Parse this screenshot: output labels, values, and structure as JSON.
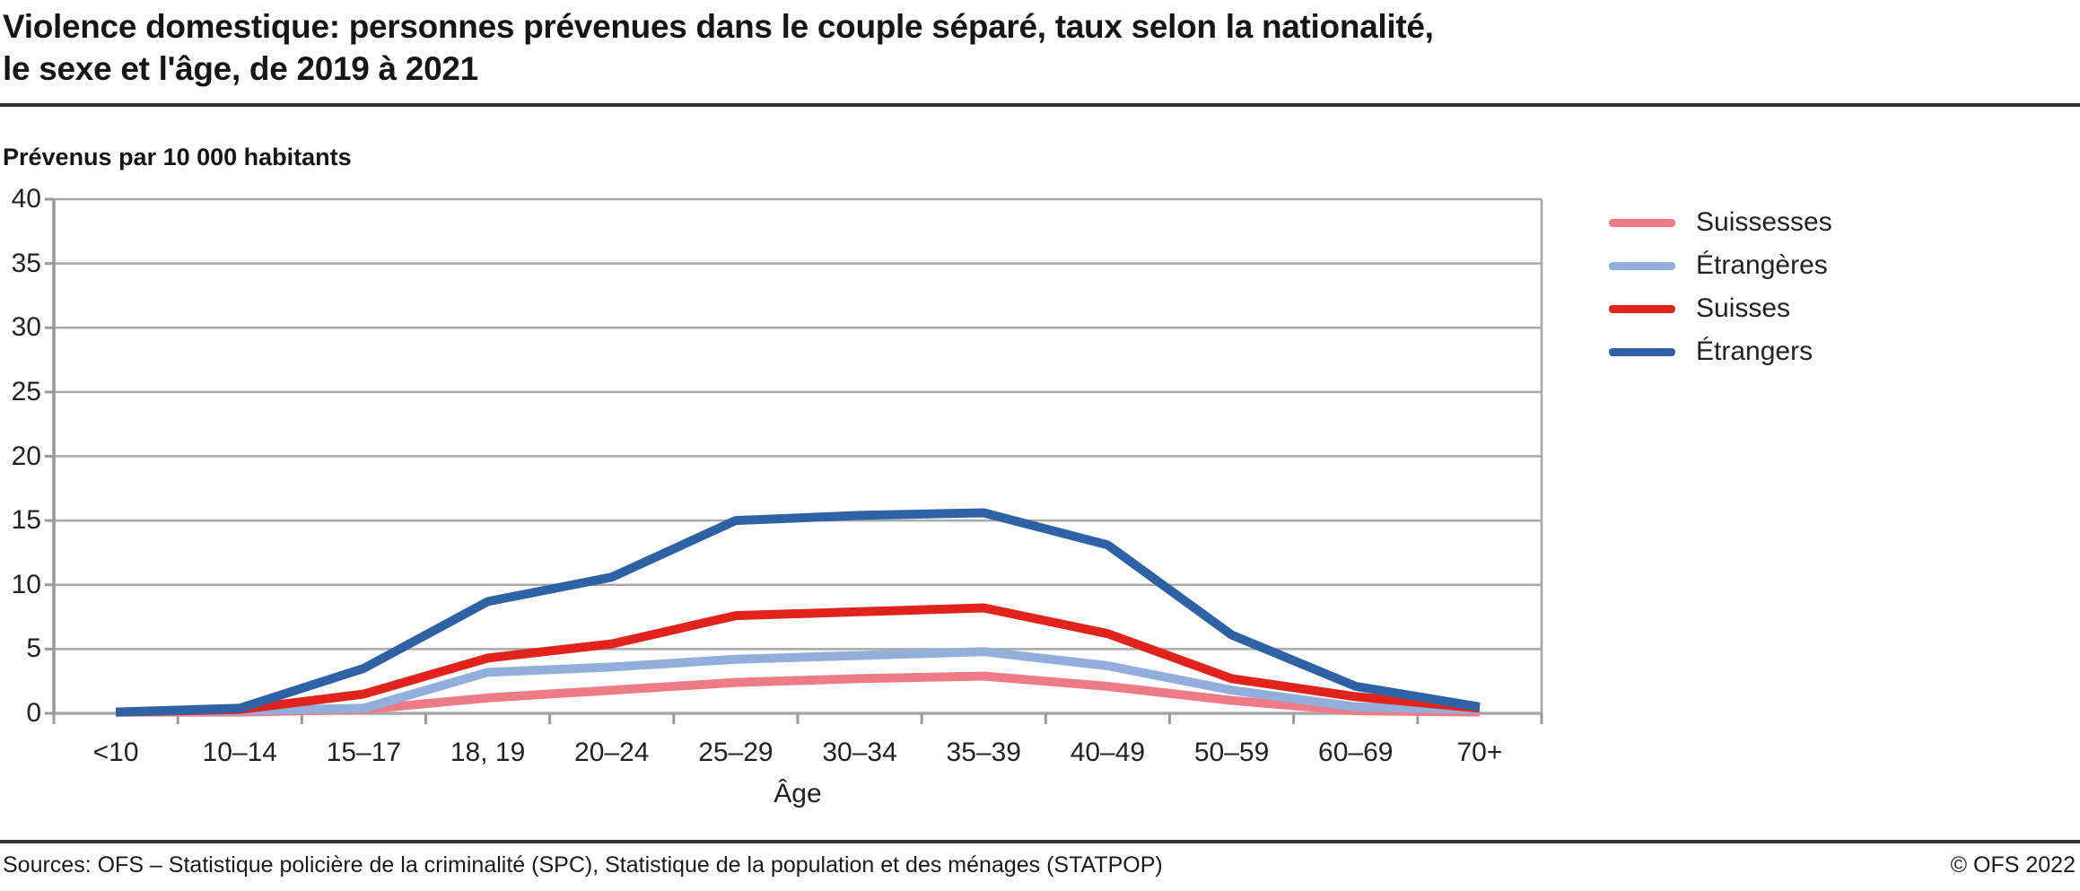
{
  "header": {
    "title_line1": "Violence domestique: personnes prévenues dans le couple séparé, taux selon la nationalité,",
    "title_line2": "le sexe et l'âge, de 2019 à 2021"
  },
  "chart_data": {
    "type": "line",
    "title": "Violence domestique: personnes prévenues dans le couple séparé, taux selon la nationalité, le sexe et l'âge, de 2019 à 2021",
    "unit_label": "Prévenus par 10 000 habitants",
    "xlabel": "Âge",
    "categories": [
      "<10",
      "10–14",
      "15–17",
      "18, 19",
      "20–24",
      "25–29",
      "30–34",
      "35–39",
      "40–49",
      "50–59",
      "60–69",
      "70+"
    ],
    "series": [
      {
        "name": "Suissesses",
        "color": "#ee7c86",
        "values": [
          0.1,
          0.1,
          0.3,
          1.2,
          1.8,
          2.4,
          2.7,
          2.9,
          2.1,
          1.0,
          0.2,
          0.1
        ]
      },
      {
        "name": "Étrangères",
        "color": "#92afdc",
        "values": [
          0.1,
          0.2,
          0.4,
          3.2,
          3.6,
          4.2,
          4.5,
          4.8,
          3.7,
          1.8,
          0.5,
          0.3
        ]
      },
      {
        "name": "Suisses",
        "color": "#e0231c",
        "values": [
          0.1,
          0.3,
          1.5,
          4.3,
          5.4,
          7.6,
          7.9,
          8.2,
          6.2,
          2.7,
          1.3,
          0.4
        ]
      },
      {
        "name": "Étrangers",
        "color": "#2f62a4",
        "values": [
          0.1,
          0.4,
          3.5,
          8.7,
          10.6,
          15.0,
          15.4,
          15.6,
          13.1,
          6.1,
          2.1,
          0.5
        ]
      }
    ],
    "ylim": [
      0,
      40
    ],
    "ytick_step": 5,
    "grid": true,
    "legend_position": "top-right",
    "grid_color": "#a8a8a8",
    "axis_color": "#9a9a9a"
  },
  "footer": {
    "sources": "Sources: OFS – Statistique policière de la criminalité (SPC), Statistique de la population et des ménages (STATPOP)",
    "copyright": "© OFS 2022"
  }
}
